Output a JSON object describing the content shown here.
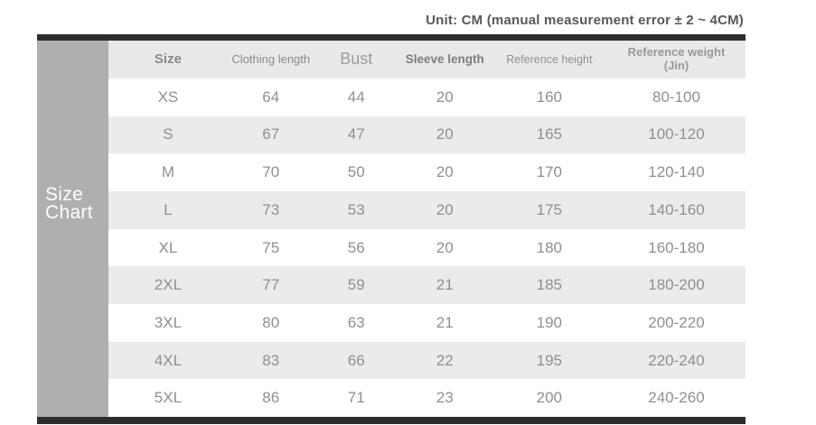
{
  "unit_note": "Unit: CM (manual measurement error ± 2 ~ 4CM)",
  "side_label": {
    "line1": "Size",
    "line2": "Chart"
  },
  "table": {
    "columns": [
      "Size",
      "Clothing length",
      "Bust",
      "Sleeve length",
      "Reference height",
      "Reference weight (Jin)"
    ],
    "rows": [
      {
        "size": "XS",
        "clothing_length": "64",
        "bust": "44",
        "sleeve_length": "20",
        "reference_height": "160",
        "reference_weight": "80-100"
      },
      {
        "size": "S",
        "clothing_length": "67",
        "bust": "47",
        "sleeve_length": "20",
        "reference_height": "165",
        "reference_weight": "100-120"
      },
      {
        "size": "M",
        "clothing_length": "70",
        "bust": "50",
        "sleeve_length": "20",
        "reference_height": "170",
        "reference_weight": "120-140"
      },
      {
        "size": "L",
        "clothing_length": "73",
        "bust": "53",
        "sleeve_length": "20",
        "reference_height": "175",
        "reference_weight": "140-160"
      },
      {
        "size": "XL",
        "clothing_length": "75",
        "bust": "56",
        "sleeve_length": "20",
        "reference_height": "180",
        "reference_weight": "160-180"
      },
      {
        "size": "2XL",
        "clothing_length": "77",
        "bust": "59",
        "sleeve_length": "21",
        "reference_height": "185",
        "reference_weight": "180-200"
      },
      {
        "size": "3XL",
        "clothing_length": "80",
        "bust": "63",
        "sleeve_length": "21",
        "reference_height": "190",
        "reference_weight": "200-220"
      },
      {
        "size": "4XL",
        "clothing_length": "83",
        "bust": "66",
        "sleeve_length": "22",
        "reference_height": "195",
        "reference_weight": "220-240"
      },
      {
        "size": "5XL",
        "clothing_length": "86",
        "bust": "71",
        "sleeve_length": "23",
        "reference_height": "200",
        "reference_weight": "240-260"
      }
    ]
  },
  "colors": {
    "bar": "#2d2d2d",
    "side_label_bg": "#afafaf",
    "header_bg": "#e9e9e9",
    "alt_row_bg": "#ebebeb",
    "data_text": "#8f8f8f"
  }
}
